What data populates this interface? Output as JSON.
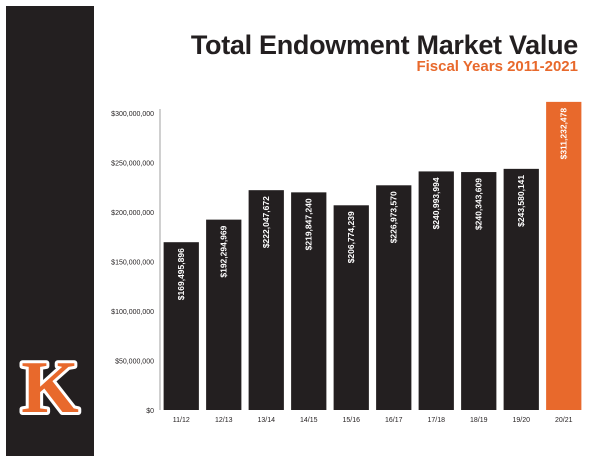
{
  "colors": {
    "panel": "#231f20",
    "accent": "#e8692c",
    "bar": "#231f20",
    "highlight": "#e8692c"
  },
  "logo": {
    "letter": "K"
  },
  "chart_data": {
    "type": "bar",
    "title": "Total Endowment Market Value",
    "subtitle": "Fiscal Years 2011-2021",
    "xlabel": "",
    "ylabel": "",
    "ylim": [
      0,
      300000000
    ],
    "yticks": [
      0,
      50000000,
      100000000,
      150000000,
      200000000,
      250000000,
      300000000
    ],
    "ytick_labels": [
      "$0",
      "$50,000,000",
      "$100,000,000",
      "$150,000,000",
      "$200,000,000",
      "$250,000,000",
      "$300,000,000"
    ],
    "grid": false,
    "categories": [
      "11/12",
      "12/13",
      "13/14",
      "14/15",
      "15/16",
      "16/17",
      "17/18",
      "18/19",
      "19/20",
      "20/21"
    ],
    "values": [
      169495896,
      192294969,
      222047672,
      219847240,
      206774239,
      226973570,
      240993994,
      240343609,
      243580141,
      311232478
    ],
    "labels": [
      "$169,495,896",
      "$192,294,969",
      "$222,047,672",
      "$219,847,240",
      "$206,774,239",
      "$226,973,570",
      "$240,993,994",
      "$240,343,609",
      "$243,580,141",
      "$311,232,478"
    ],
    "highlight_index": 9
  }
}
